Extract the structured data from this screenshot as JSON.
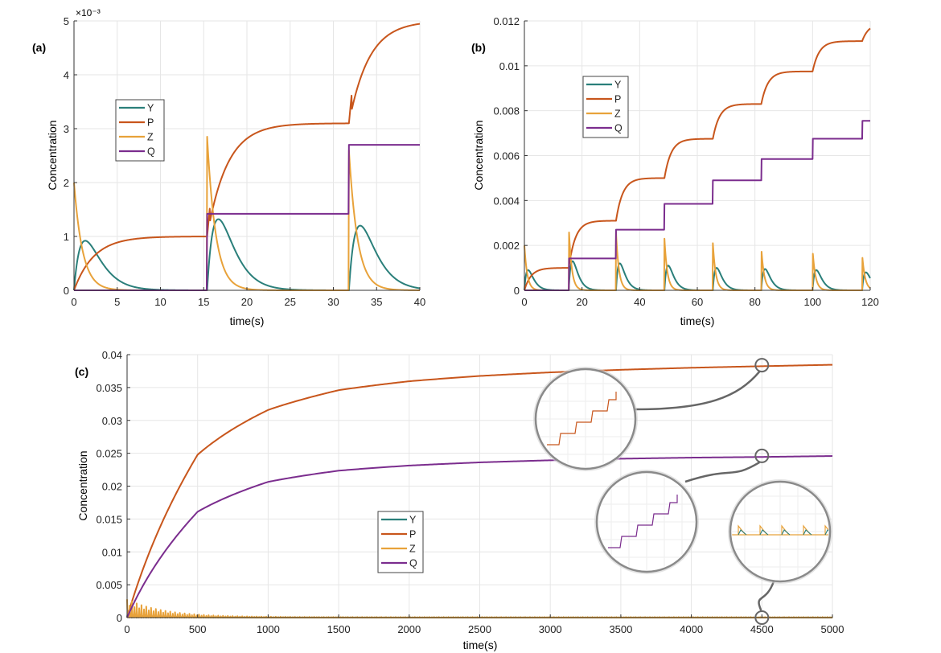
{
  "colors": {
    "Y": "#2a7f7a",
    "P": "#c8561c",
    "Z": "#e8a23a",
    "Q": "#7b2d8e",
    "grid": "#e6e6e6",
    "axis": "#333333",
    "lens_ring": "#888888"
  },
  "chart_data": [
    {
      "id": "a",
      "type": "line",
      "panel_label": "(a)",
      "xlabel": "time(s)",
      "ylabel": "Concentration",
      "exponent_label": "×10⁻³",
      "xlim": [
        0,
        40
      ],
      "ylim": [
        0,
        5
      ],
      "xticks": [
        0,
        5,
        10,
        15,
        20,
        25,
        30,
        35,
        40
      ],
      "yticks": [
        0,
        1,
        2,
        3,
        4,
        5
      ],
      "xtick_labels": [
        "0",
        "5",
        "10",
        "15",
        "20",
        "25",
        "30",
        "35",
        "40"
      ],
      "ytick_labels": [
        "0",
        "1",
        "2",
        "3",
        "4",
        "5"
      ],
      "grid": true,
      "legend": [
        "Y",
        "P",
        "Z",
        "Q"
      ],
      "legend_position": "upper-left-inset",
      "injection_times": [
        0,
        15.4,
        31.8
      ],
      "series": [
        {
          "name": "Y",
          "key": "Y",
          "description": "transient peaks ~0.9, 1.3, 1.2 after each pulse"
        },
        {
          "name": "P",
          "key": "P",
          "values_at_end": 5.0,
          "plateaus": [
            1.0,
            3.1,
            5.0
          ]
        },
        {
          "name": "Z",
          "key": "Z",
          "peaks": [
            2.0,
            2.85,
            2.6
          ]
        },
        {
          "name": "Q",
          "key": "Q",
          "plateaus": [
            0,
            1.42,
            2.7
          ]
        }
      ]
    },
    {
      "id": "b",
      "type": "line",
      "panel_label": "(b)",
      "xlabel": "time(s)",
      "ylabel": "Concentration",
      "xlim": [
        0,
        120
      ],
      "ylim": [
        0,
        0.012
      ],
      "xticks": [
        0,
        20,
        40,
        60,
        80,
        100,
        120
      ],
      "yticks": [
        0,
        0.002,
        0.004,
        0.006,
        0.008,
        0.01,
        0.012
      ],
      "xtick_labels": [
        "0",
        "20",
        "40",
        "60",
        "80",
        "100",
        "120"
      ],
      "ytick_labels": [
        "0",
        "0.002",
        "0.004",
        "0.006",
        "0.008",
        "0.01",
        "0.012"
      ],
      "grid": true,
      "legend": [
        "Y",
        "P",
        "Z",
        "Q"
      ],
      "legend_position": "upper-left-inset",
      "injection_times": [
        0,
        15.4,
        31.8,
        48.6,
        65.4,
        82.2,
        100.0,
        117.2
      ],
      "series": [
        {
          "name": "Y",
          "key": "Y"
        },
        {
          "name": "P",
          "key": "P",
          "plateaus": [
            0.001,
            0.0031,
            0.005,
            0.00675,
            0.0083,
            0.00975,
            0.0111,
            0.0119
          ]
        },
        {
          "name": "Z",
          "key": "Z",
          "peaks": [
            0.002,
            0.00285,
            0.0026,
            0.0023,
            0.0021,
            0.0019,
            0.0018,
            0.0016
          ]
        },
        {
          "name": "Q",
          "key": "Q",
          "plateaus": [
            0,
            0.00142,
            0.0027,
            0.00385,
            0.0049,
            0.00585,
            0.00675,
            0.00755
          ]
        }
      ]
    },
    {
      "id": "c",
      "type": "line",
      "panel_label": "(c)",
      "xlabel": "time(s)",
      "ylabel": "Concentration",
      "xlim": [
        0,
        5000
      ],
      "ylim": [
        0,
        0.04
      ],
      "xticks": [
        0,
        500,
        1000,
        1500,
        2000,
        2500,
        3000,
        3500,
        4000,
        4500,
        5000
      ],
      "yticks": [
        0,
        0.005,
        0.01,
        0.015,
        0.02,
        0.025,
        0.03,
        0.035,
        0.04
      ],
      "xtick_labels": [
        "0",
        "500",
        "1000",
        "1500",
        "2000",
        "2500",
        "3000",
        "3500",
        "4000",
        "4500",
        "5000"
      ],
      "ytick_labels": [
        "0",
        "0.005",
        "0.01",
        "0.015",
        "0.02",
        "0.025",
        "0.03",
        "0.035",
        "0.04"
      ],
      "grid": true,
      "legend": [
        "Y",
        "P",
        "Z",
        "Q"
      ],
      "legend_position": "center",
      "series": [
        {
          "name": "Y",
          "key": "Y"
        },
        {
          "name": "P",
          "key": "P",
          "x": [
            0,
            500,
            1000,
            1500,
            2000,
            2500,
            3000,
            3500,
            4000,
            4500,
            5000
          ],
          "values": [
            0,
            0.024,
            0.0305,
            0.034,
            0.0356,
            0.0366,
            0.0373,
            0.0378,
            0.0382,
            0.0385,
            0.0388
          ]
        },
        {
          "name": "Z",
          "key": "Z"
        },
        {
          "name": "Q",
          "key": "Q",
          "x": [
            0,
            500,
            1000,
            1500,
            2000,
            2500,
            3000,
            3500,
            4000,
            4500,
            5000
          ],
          "values": [
            0,
            0.0155,
            0.0202,
            0.0221,
            0.023,
            0.0236,
            0.024,
            0.0243,
            0.0245,
            0.0246,
            0.0248
          ]
        }
      ],
      "zoom_insets": [
        {
          "target_series": "P",
          "target_x": 4500,
          "target_y": 0.0384
        },
        {
          "target_series": "Q",
          "target_x": 4500,
          "target_y": 0.0246
        },
        {
          "target_series": "Z",
          "target_x": 4500,
          "target_y": 0.0
        }
      ]
    }
  ]
}
